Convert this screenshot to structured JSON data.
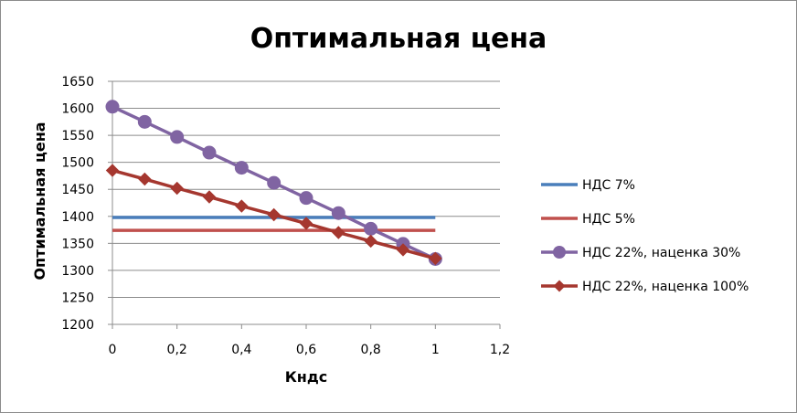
{
  "chart_data": {
    "type": "line",
    "title": "Оптимальная цена",
    "xlabel": "Кндс",
    "ylabel": "Оптимальная цена",
    "xlim": [
      0,
      1.2
    ],
    "ylim": [
      1200,
      1650
    ],
    "x_ticks": [
      "0",
      "0,2",
      "0,4",
      "0,6",
      "0,8",
      "1",
      "1,2"
    ],
    "y_ticks": [
      "1200",
      "1250",
      "1300",
      "1350",
      "1400",
      "1450",
      "1500",
      "1550",
      "1600",
      "1650"
    ],
    "grid": "horizontal",
    "legend_position": "right",
    "series": [
      {
        "name": "НДС 7%",
        "color": "#4a7ebb",
        "marker": "none",
        "x": [
          0,
          1
        ],
        "y": [
          1398,
          1398
        ]
      },
      {
        "name": "НДС 5%",
        "color": "#c0504d",
        "marker": "none",
        "x": [
          0,
          1
        ],
        "y": [
          1374,
          1374
        ]
      },
      {
        "name": "НДС 22%, наценка 30%",
        "color": "#8064a2",
        "marker": "circle",
        "x": [
          0,
          0.1,
          0.2,
          0.3,
          0.4,
          0.5,
          0.6,
          0.7,
          0.8,
          0.9,
          1
        ],
        "y": [
          1603,
          1575,
          1547,
          1518,
          1490,
          1462,
          1434,
          1406,
          1377,
          1349,
          1321
        ]
      },
      {
        "name": "НДС 22%, наценка 100%",
        "color": "#a5372f",
        "marker": "diamond",
        "x": [
          0,
          0.1,
          0.2,
          0.3,
          0.4,
          0.5,
          0.6,
          0.7,
          0.8,
          0.9,
          1
        ],
        "y": [
          1485,
          1469,
          1452,
          1436,
          1419,
          1403,
          1387,
          1370,
          1354,
          1338,
          1322
        ]
      }
    ]
  }
}
